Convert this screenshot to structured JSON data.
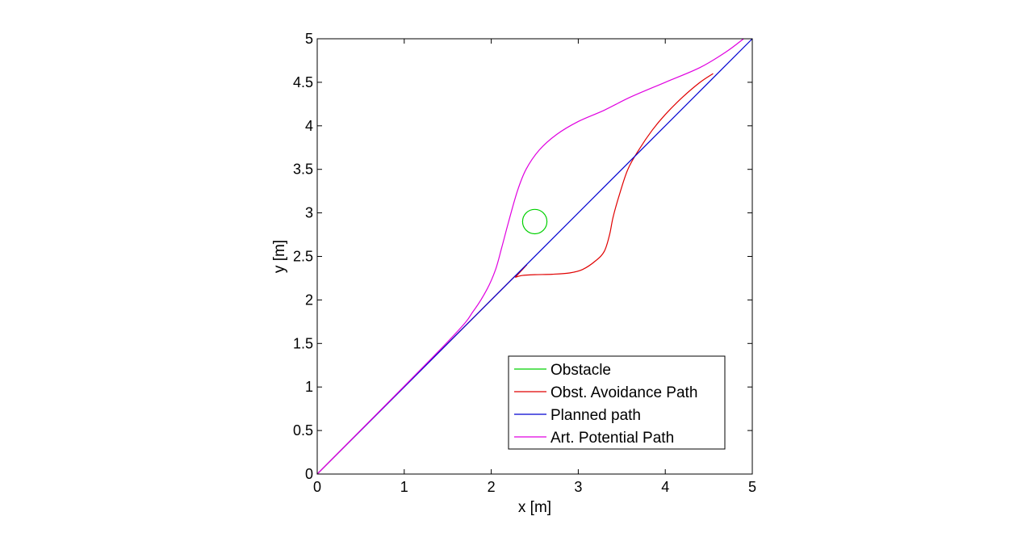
{
  "chart_data": {
    "type": "line",
    "xlabel": "x [m]",
    "ylabel": "y [m]",
    "xlim": [
      0,
      5
    ],
    "ylim": [
      0,
      5
    ],
    "xticks": [
      "0",
      "1",
      "2",
      "3",
      "4",
      "5"
    ],
    "yticks": [
      "0",
      "0.5",
      "1",
      "1.5",
      "2",
      "2.5",
      "3",
      "3.5",
      "4",
      "4.5",
      "5"
    ],
    "grid": false,
    "legend_position": "bottom-right",
    "series": [
      {
        "name": "Obstacle",
        "color": "#00d000",
        "kind": "circle",
        "center": [
          2.5,
          2.9
        ],
        "radius": 0.14
      },
      {
        "name": "Obst. Avoidance Path",
        "color": "#e00000",
        "points": [
          [
            0,
            0
          ],
          [
            2.23,
            2.23
          ],
          [
            2.28,
            2.26
          ],
          [
            2.35,
            2.28
          ],
          [
            2.5,
            2.29
          ],
          [
            2.7,
            2.295
          ],
          [
            2.9,
            2.31
          ],
          [
            3.05,
            2.35
          ],
          [
            3.2,
            2.45
          ],
          [
            3.3,
            2.56
          ],
          [
            3.36,
            2.75
          ],
          [
            3.4,
            2.95
          ],
          [
            3.47,
            3.2
          ],
          [
            3.57,
            3.5
          ],
          [
            3.7,
            3.73
          ],
          [
            3.85,
            3.95
          ],
          [
            4.0,
            4.13
          ],
          [
            4.2,
            4.33
          ],
          [
            4.4,
            4.5
          ],
          [
            4.55,
            4.6
          ]
        ]
      },
      {
        "name": "Planned path",
        "color": "#0000d0",
        "points": [
          [
            0,
            0
          ],
          [
            5,
            5
          ]
        ]
      },
      {
        "name": "Art. Potential Path",
        "color": "#e000e0",
        "points": [
          [
            0,
            0
          ],
          [
            1.5,
            1.52
          ],
          [
            1.8,
            1.88
          ],
          [
            1.95,
            2.12
          ],
          [
            2.05,
            2.35
          ],
          [
            2.12,
            2.6
          ],
          [
            2.2,
            2.9
          ],
          [
            2.3,
            3.25
          ],
          [
            2.4,
            3.5
          ],
          [
            2.55,
            3.72
          ],
          [
            2.75,
            3.9
          ],
          [
            3.0,
            4.05
          ],
          [
            3.3,
            4.18
          ],
          [
            3.6,
            4.33
          ],
          [
            4.0,
            4.5
          ],
          [
            4.4,
            4.67
          ],
          [
            4.7,
            4.85
          ],
          [
            4.9,
            5.0
          ]
        ]
      }
    ]
  }
}
